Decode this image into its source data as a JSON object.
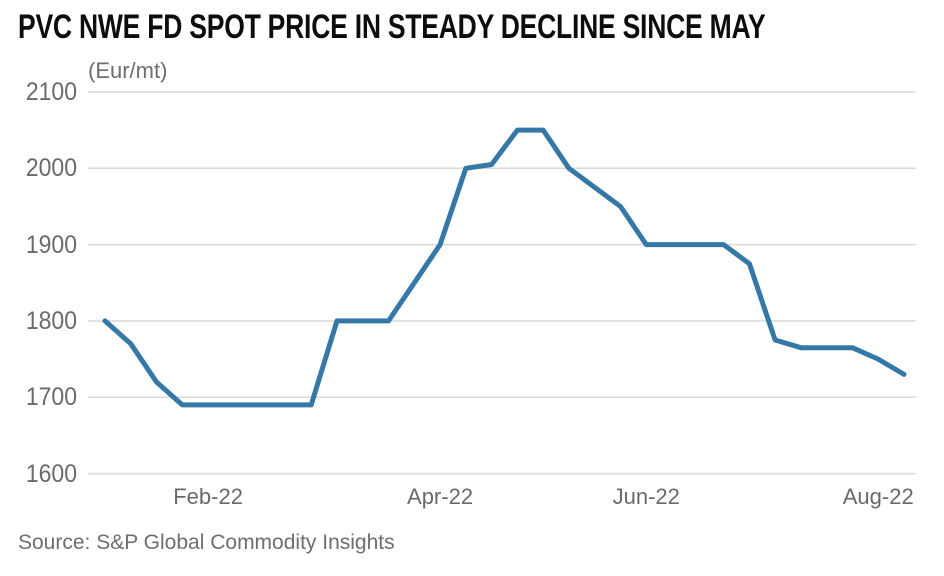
{
  "chart_data": {
    "type": "line",
    "title": "PVC NWE FD SPOT PRICE IN STEADY DECLINE SINCE MAY",
    "units_label": "(Eur/mt)",
    "source": "Source: S&P Global Commodity Insights",
    "series_name": "PVC NWE FD spot price",
    "ylim": [
      1600,
      2100
    ],
    "y_ticks": [
      2100,
      2000,
      1900,
      1800,
      1700,
      1600
    ],
    "x": [
      0,
      1,
      2,
      3,
      4,
      5,
      6,
      7,
      8,
      9,
      10,
      11,
      12,
      13,
      14,
      15,
      16,
      17,
      18,
      19,
      20,
      21,
      22,
      23,
      24,
      25,
      26,
      27,
      28,
      29,
      30,
      31
    ],
    "values": [
      1800,
      1770,
      1720,
      1690,
      1690,
      1690,
      1690,
      1690,
      1690,
      1800,
      1800,
      1800,
      1850,
      1900,
      2000,
      2005,
      2050,
      2050,
      2000,
      1975,
      1950,
      1900,
      1900,
      1900,
      1900,
      1875,
      1775,
      1765,
      1765,
      1765,
      1750,
      1730
    ],
    "x_tick_labels": [
      {
        "label": "Feb-22",
        "index": 4
      },
      {
        "label": "Apr-22",
        "index": 13
      },
      {
        "label": "Jun-22",
        "index": 21
      },
      {
        "label": "Aug-22",
        "index": 30
      }
    ],
    "grid": "horizontal",
    "legend": "none",
    "line_color": "#3478A8",
    "gridline_color": "#D9D9D9",
    "axis_text_color": "#6A6A6A",
    "title_color": "#0D0D0D"
  }
}
